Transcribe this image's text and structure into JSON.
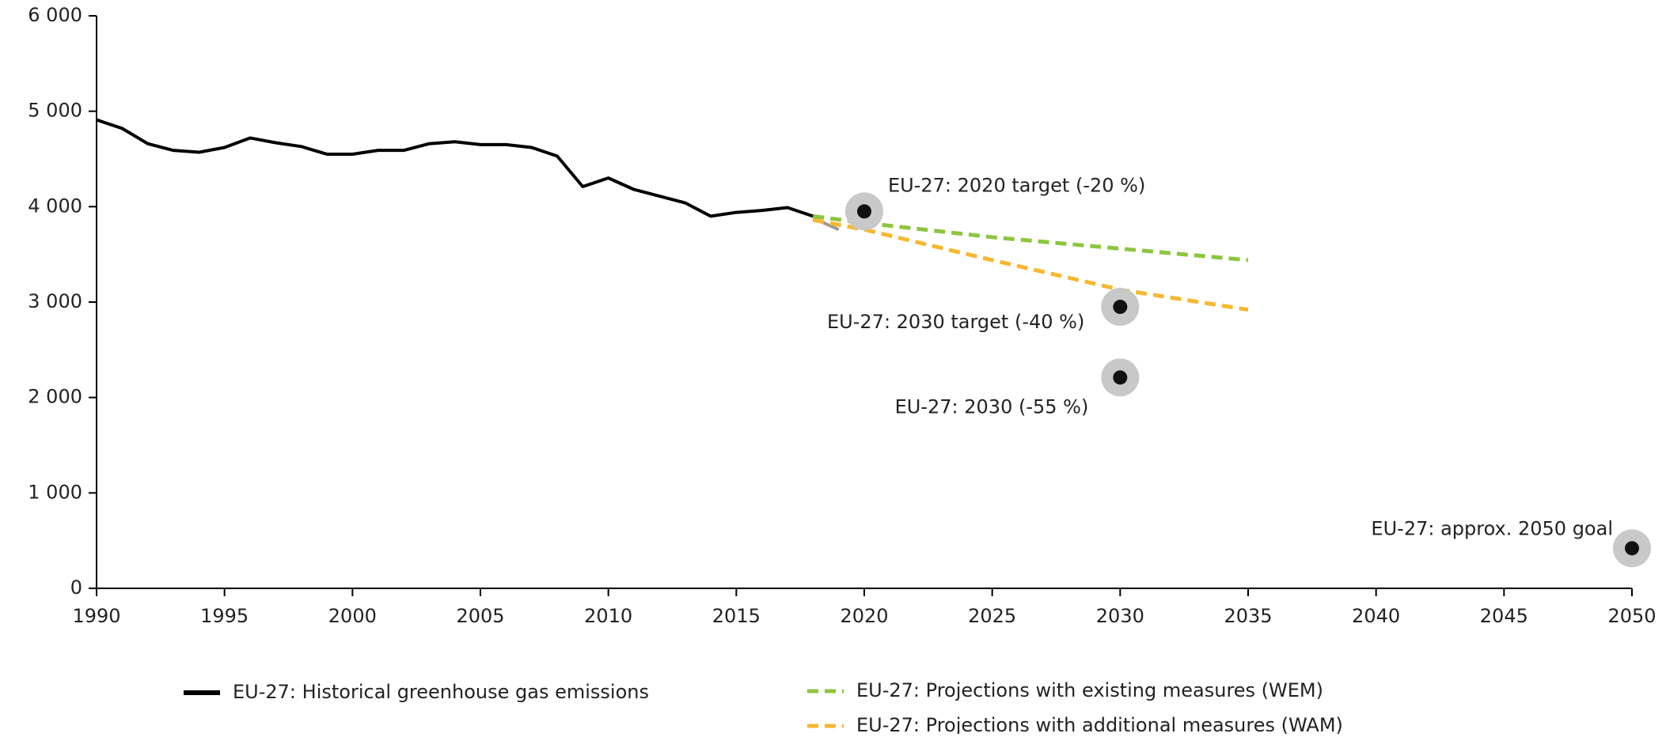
{
  "chart_data": {
    "type": "line",
    "xlim": [
      1990,
      2050
    ],
    "xticks": [
      1990,
      1995,
      2000,
      2005,
      2010,
      2015,
      2020,
      2025,
      2030,
      2035,
      2040,
      2045,
      2050
    ],
    "ylim": [
      0,
      6000
    ],
    "yticks": [
      0,
      {
        "value": 1000,
        "label": "1 000"
      },
      {
        "value": 2000,
        "label": "2 000"
      },
      {
        "value": 3000,
        "label": "3 000"
      },
      {
        "value": 4000,
        "label": "4 000"
      },
      {
        "value": 5000,
        "label": "5 000"
      },
      {
        "value": 6000,
        "label": "6 000"
      }
    ],
    "series": [
      {
        "name": "EU-27: Historical greenhouse gas emissions",
        "color": "#000000",
        "dash": false,
        "x": [
          1990,
          1991,
          1992,
          1993,
          1994,
          1995,
          1996,
          1997,
          1998,
          1999,
          2000,
          2001,
          2002,
          2003,
          2004,
          2005,
          2006,
          2007,
          2008,
          2009,
          2010,
          2011,
          2012,
          2013,
          2014,
          2015,
          2016,
          2017,
          2018
        ],
        "values": [
          4910,
          4820,
          4660,
          4590,
          4570,
          4620,
          4720,
          4670,
          4630,
          4550,
          4550,
          4590,
          4590,
          4660,
          4680,
          4650,
          4650,
          4620,
          4530,
          4210,
          4300,
          4180,
          4110,
          4040,
          3900,
          3940,
          3960,
          3990,
          3900
        ]
      },
      {
        "color": "#999999",
        "dash": false,
        "x": [
          2018,
          2019
        ],
        "values": [
          3880,
          3760
        ]
      },
      {
        "name": "EU-27: Projections with existing measures (WEM)",
        "color": "#8cc63f",
        "dash": true,
        "x": [
          2018,
          2020,
          2025,
          2030,
          2035
        ],
        "values": [
          3900,
          3830,
          3680,
          3560,
          3440
        ]
      },
      {
        "name": "EU-27: Projections with additional measures (WAM)",
        "color": "#f7b731",
        "dash": true,
        "x": [
          2018,
          2020,
          2025,
          2030,
          2035
        ],
        "values": [
          3860,
          3760,
          3440,
          3130,
          2920
        ]
      }
    ],
    "points": [
      {
        "label": "EU-27: 2020 target (-20 %)",
        "x": 2020,
        "y": 3950
      },
      {
        "label": "EU-27: 2030 target (-40 %)",
        "x": 2030,
        "y": 2950
      },
      {
        "label": "EU-27: 2030 (-55 %)",
        "x": 2030,
        "y": 2210
      },
      {
        "label": "EU-27: approx. 2050 goal",
        "x": 2050,
        "y": 420
      }
    ]
  }
}
